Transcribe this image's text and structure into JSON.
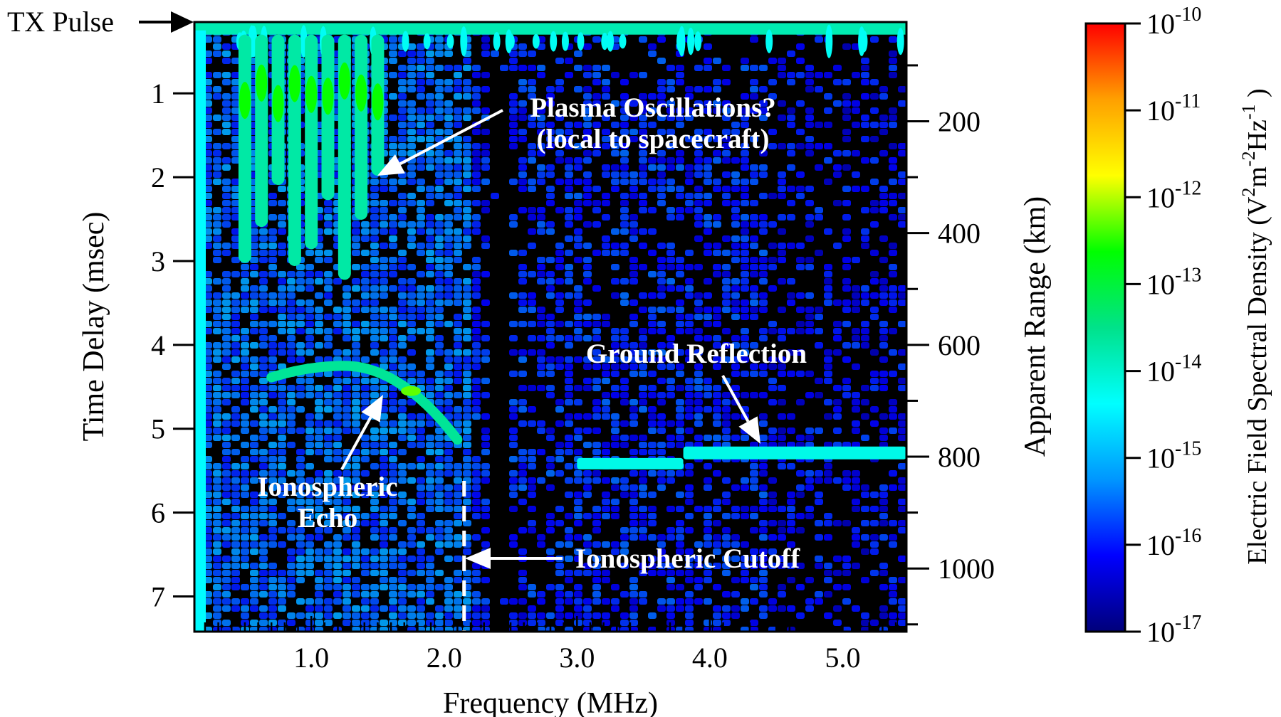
{
  "chart_data": {
    "type": "heatmap",
    "tx_pulse_label": "TX Pulse",
    "xlabel": "Frequency (MHz)",
    "ylabel": "Time Delay (msec)",
    "y2label": "Apparent Range (km)",
    "xlim": [
      0.12,
      5.48
    ],
    "ylim": [
      0.15,
      7.42
    ],
    "x_ticks": [
      1.0,
      2.0,
      3.0,
      4.0,
      5.0
    ],
    "x_tick_labels": [
      "1.0",
      "2.0",
      "3.0",
      "4.0",
      "5.0"
    ],
    "y_ticks": [
      1,
      2,
      3,
      4,
      5,
      6,
      7
    ],
    "y_tick_labels": [
      "1",
      "2",
      "3",
      "4",
      "5",
      "6",
      "7"
    ],
    "y2_ticks_km": [
      200,
      400,
      600,
      800,
      1000
    ],
    "y2_tick_labels": [
      "200",
      "400",
      "600",
      "800",
      "1000"
    ],
    "colorbar": {
      "label_main": "Electric Field Spectral Density (V",
      "label_tail": ")",
      "units_parts": [
        {
          "base": "V",
          "exp": "2"
        },
        {
          "base": "m",
          "exp": "-2"
        },
        {
          "base": "Hz",
          "exp": "-1"
        }
      ],
      "scale": "log",
      "min_exponent": -17,
      "max_exponent": -10,
      "tick_base": "10",
      "tick_exponents": [
        "-10",
        "-11",
        "-12",
        "-13",
        "-14",
        "-15",
        "-16",
        "-17"
      ],
      "colors": [
        "#00007a",
        "#0000ff",
        "#0096ff",
        "#00ffff",
        "#00e28a",
        "#00ff00",
        "#ffff00",
        "#ffa000",
        "#ff0000"
      ]
    },
    "features": [
      {
        "name": "TX Pulse",
        "freq_mhz": [
          0.12,
          5.48
        ],
        "delay_ms": 0.3,
        "log_density": -13.8
      },
      {
        "name": "Plasma Oscillations",
        "freq_mhz": [
          0.5,
          1.5
        ],
        "delay_ms": [
          0.3,
          3.5
        ],
        "log_density": -12.8
      },
      {
        "name": "Ionospheric Echo",
        "freq_mhz": [
          0.7,
          2.1
        ],
        "delay_ms": [
          4.25,
          4.8
        ],
        "log_density": -13.6
      },
      {
        "name": "Ground Reflection",
        "freq_mhz": [
          3.0,
          5.48
        ],
        "delay_ms": [
          5.28,
          5.4
        ],
        "log_density": -14.2
      },
      {
        "name": "Ionospheric Cutoff",
        "freq_mhz": 2.15
      }
    ],
    "annotations": [
      {
        "id": "plasma",
        "lines": [
          "Plasma Oscillations?",
          "(local to spacecraft)"
        ]
      },
      {
        "id": "ground",
        "lines": [
          "Ground Reflection"
        ]
      },
      {
        "id": "iono_echo",
        "lines": [
          "Ionospheric",
          "Echo"
        ]
      },
      {
        "id": "cutoff",
        "lines": [
          "Ionospheric Cutoff"
        ]
      }
    ],
    "colors": {
      "background": "#000000",
      "noise_low": "#0a1aa8",
      "annotation_text": "#ffffff",
      "axis": "#000000"
    }
  }
}
